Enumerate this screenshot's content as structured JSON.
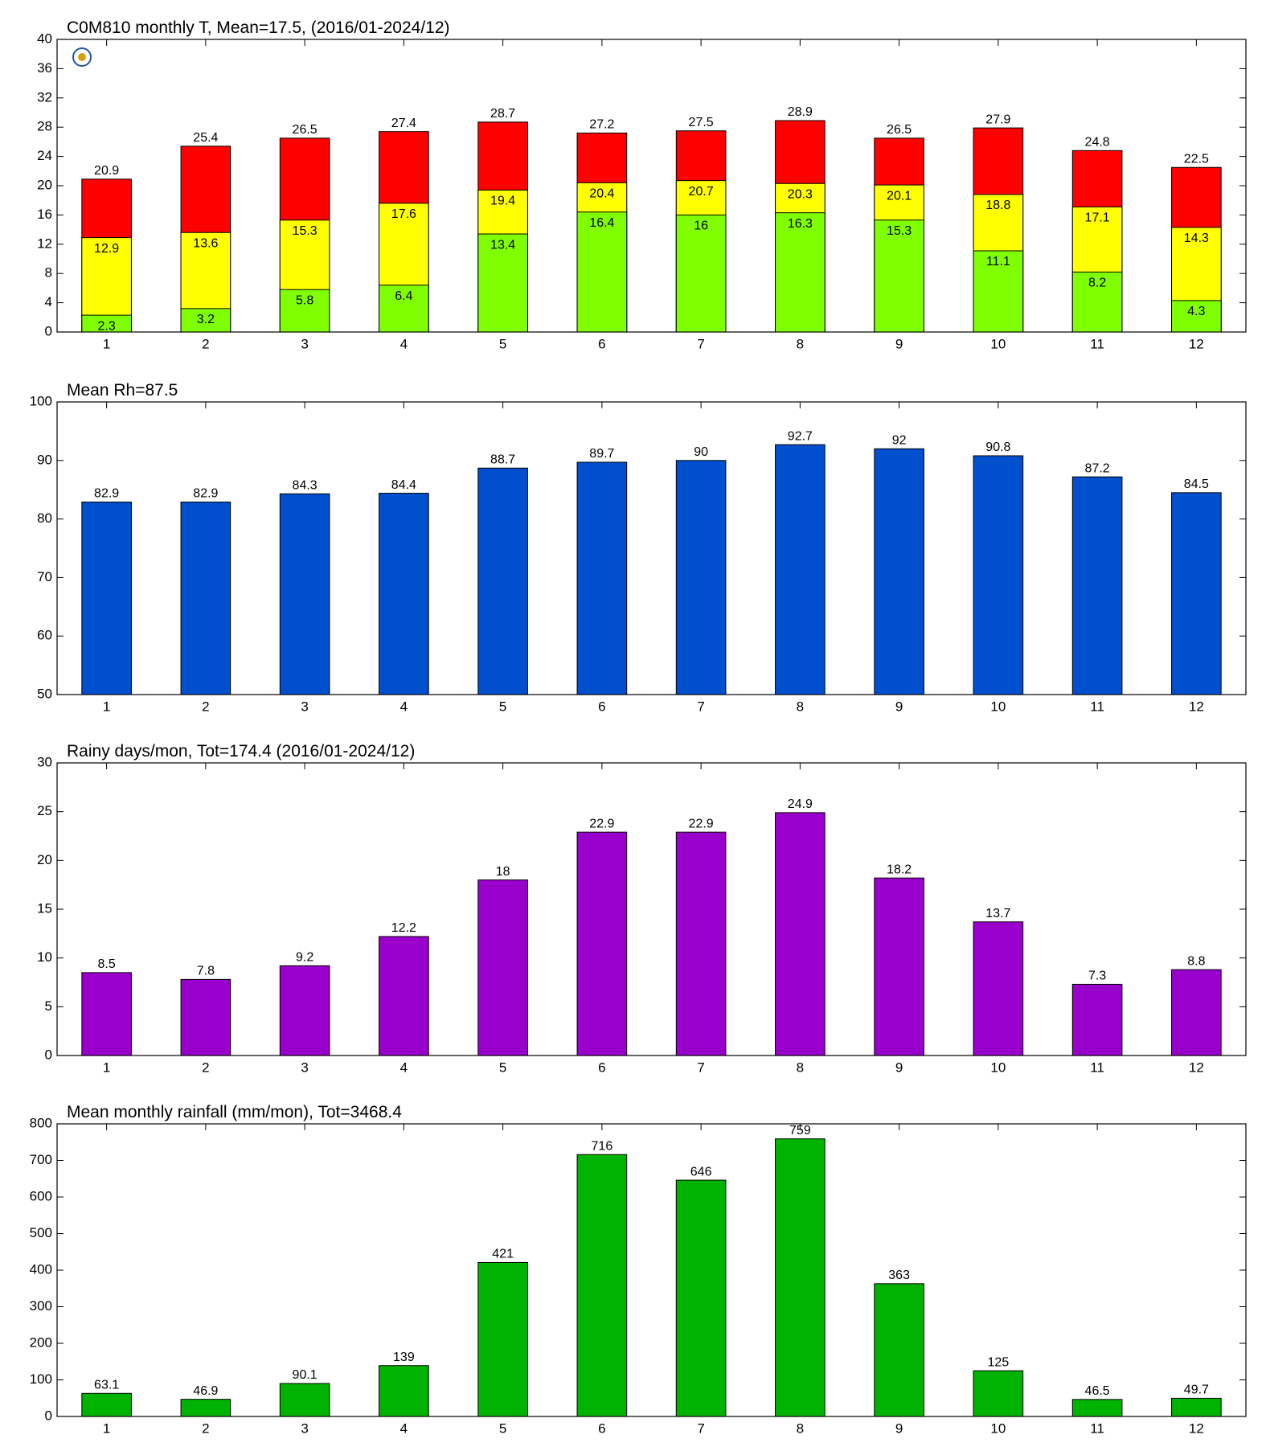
{
  "chart_data": [
    {
      "type": "bar",
      "title": "C0M810 monthly T, Mean=17.5, (2016/01-2024/12)",
      "categories": [
        1,
        2,
        3,
        4,
        5,
        6,
        7,
        8,
        9,
        10,
        11,
        12
      ],
      "series": [
        {
          "color": "#ff0000",
          "values": [
            20.9,
            25.4,
            26.5,
            27.4,
            28.7,
            27.2,
            27.5,
            28.9,
            26.5,
            27.9,
            24.8,
            22.5
          ]
        },
        {
          "color": "#ffff00",
          "values": [
            12.9,
            13.6,
            15.3,
            17.6,
            19.4,
            20.4,
            20.7,
            20.3,
            20.1,
            18.8,
            17.1,
            14.3
          ]
        },
        {
          "color": "#80ff00",
          "values": [
            2.3,
            3.2,
            5.8,
            6.4,
            13.4,
            16.4,
            16,
            16.3,
            15.3,
            11.1,
            8.2,
            4.3
          ]
        }
      ],
      "ylim": [
        0,
        40
      ],
      "yticks": [
        0,
        4,
        8,
        12,
        16,
        20,
        24,
        28,
        32,
        36,
        40
      ]
    },
    {
      "type": "bar",
      "title": "Mean Rh=87.5",
      "categories": [
        1,
        2,
        3,
        4,
        5,
        6,
        7,
        8,
        9,
        10,
        11,
        12
      ],
      "series": [
        {
          "color": "#004fcf",
          "values": [
            82.9,
            82.9,
            84.3,
            84.4,
            88.7,
            89.7,
            90,
            92.7,
            92,
            90.8,
            87.2,
            84.5
          ]
        }
      ],
      "ylim": [
        50,
        100
      ],
      "yticks": [
        50,
        60,
        70,
        80,
        90,
        100
      ]
    },
    {
      "type": "bar",
      "title": "Rainy days/mon, Tot=174.4 (2016/01-2024/12)",
      "categories": [
        1,
        2,
        3,
        4,
        5,
        6,
        7,
        8,
        9,
        10,
        11,
        12
      ],
      "series": [
        {
          "color": "#9900cc",
          "values": [
            8.5,
            7.8,
            9.2,
            12.2,
            18,
            22.9,
            22.9,
            24.9,
            18.2,
            13.7,
            7.3,
            8.8
          ]
        }
      ],
      "ylim": [
        0,
        30
      ],
      "yticks": [
        0,
        5,
        10,
        15,
        20,
        25,
        30
      ]
    },
    {
      "type": "bar",
      "title": "Mean monthly rainfall (mm/mon), Tot=3468.4",
      "categories": [
        1,
        2,
        3,
        4,
        5,
        6,
        7,
        8,
        9,
        10,
        11,
        12
      ],
      "series": [
        {
          "color": "#00b300",
          "values": [
            63.1,
            46.9,
            90.1,
            139,
            421,
            716,
            646,
            759,
            363,
            125,
            46.5,
            49.7
          ]
        }
      ],
      "ylim": [
        0,
        800
      ],
      "yticks": [
        0,
        100,
        200,
        300,
        400,
        500,
        600,
        700,
        800
      ]
    }
  ]
}
